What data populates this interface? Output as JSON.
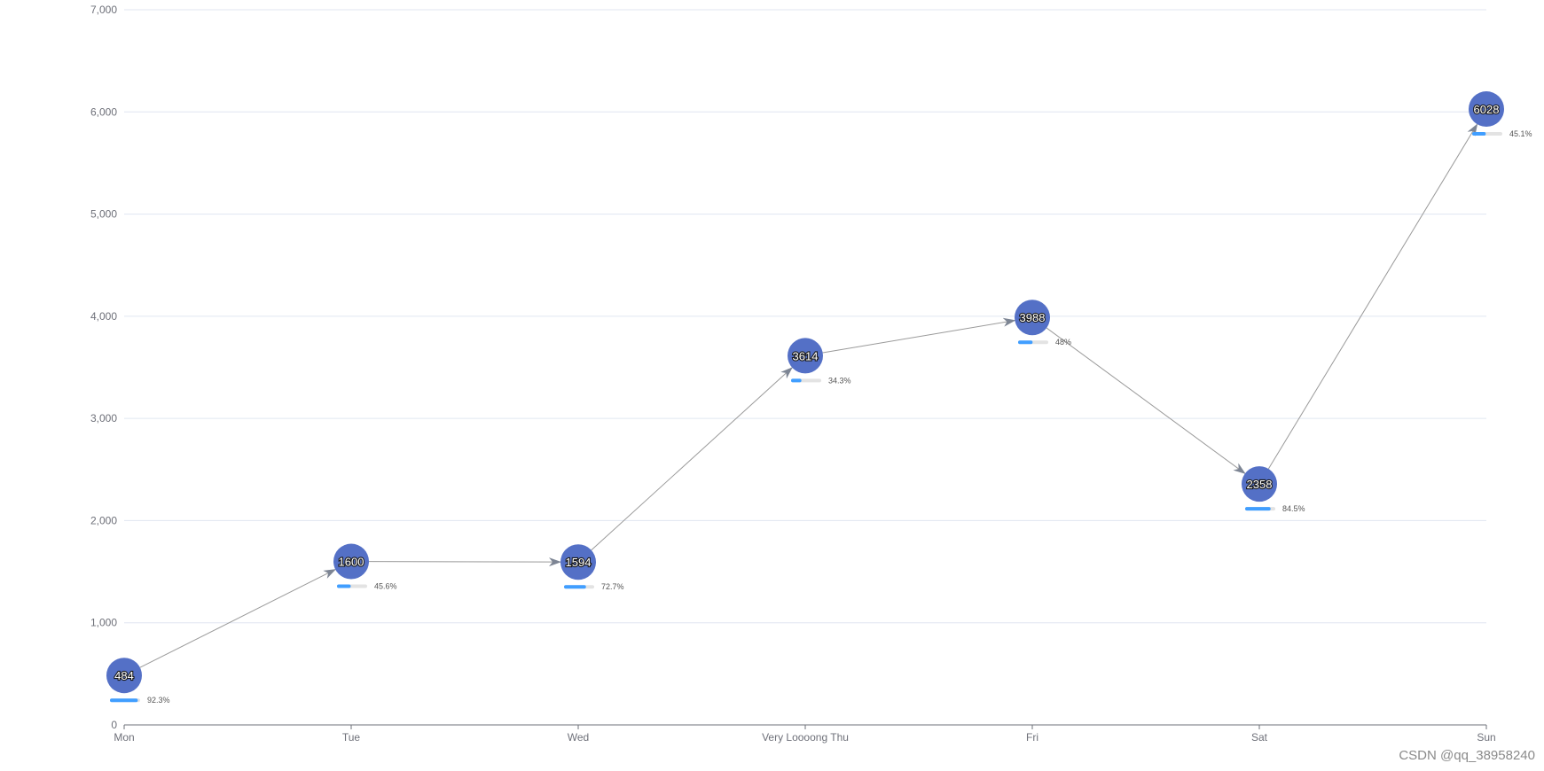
{
  "chart_data": {
    "type": "line",
    "categories": [
      "Mon",
      "Tue",
      "Wed",
      "Very Loooong Thu",
      "Fri",
      "Sat",
      "Sun"
    ],
    "series": [
      {
        "values": [
          484,
          1600,
          1594,
          3614,
          3988,
          2358,
          6028
        ],
        "percent_values": [
          92.3,
          45.6,
          72.7,
          34.3,
          48,
          84.5,
          45.1
        ],
        "percent_labels": [
          "92.3%",
          "45.6%",
          "72.7%",
          "34.3%",
          "48%",
          "84.5%",
          "45.1%"
        ]
      }
    ],
    "ylim": [
      0,
      7000
    ],
    "yticks": [
      0,
      1000,
      2000,
      3000,
      4000,
      5000,
      6000,
      7000
    ],
    "ytick_labels": [
      "0",
      "1,000",
      "2,000",
      "3,000",
      "4,000",
      "5,000",
      "6,000",
      "7,000"
    ],
    "grid": true,
    "xlabel": "",
    "ylabel": "",
    "colors": {
      "marker": "#5470c6",
      "line": "#9a9a9a",
      "arrow": "#7d8594",
      "bar_fill": "#409eff",
      "bar_track": "#e3e3e3",
      "grid": "#e0e6f1",
      "axis": "#6e7079",
      "tick_text": "#6e7079"
    }
  },
  "watermark": "CSDN @qq_38958240"
}
